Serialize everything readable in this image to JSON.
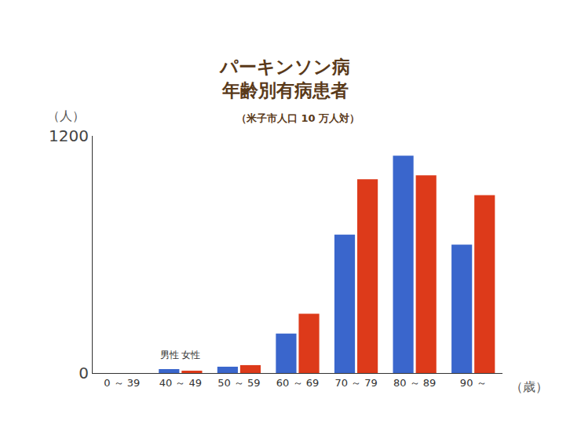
{
  "chart_data": {
    "type": "bar",
    "title": "パーキンソン病\n年齢別有病患者",
    "subtitle": "（米子市人口 10 万人対）",
    "x_label": "（歳）",
    "y_label": "（人）",
    "categories": [
      "0 ～ 39",
      "40 ～ 49",
      "50 ～ 59",
      "60 ～ 69",
      "70 ～ 79",
      "80 ～ 89",
      "90 ～"
    ],
    "series": [
      {
        "name": "男性",
        "color": "#3a66cc",
        "values": [
          0,
          20,
          32,
          200,
          700,
          1100,
          650
        ]
      },
      {
        "name": "女性",
        "color": "#dd3a1a",
        "values": [
          0,
          12,
          40,
          300,
          980,
          1000,
          900
        ]
      }
    ],
    "ylim": [
      0,
      1200
    ],
    "yticks": [
      0,
      1200
    ],
    "grid": false
  }
}
